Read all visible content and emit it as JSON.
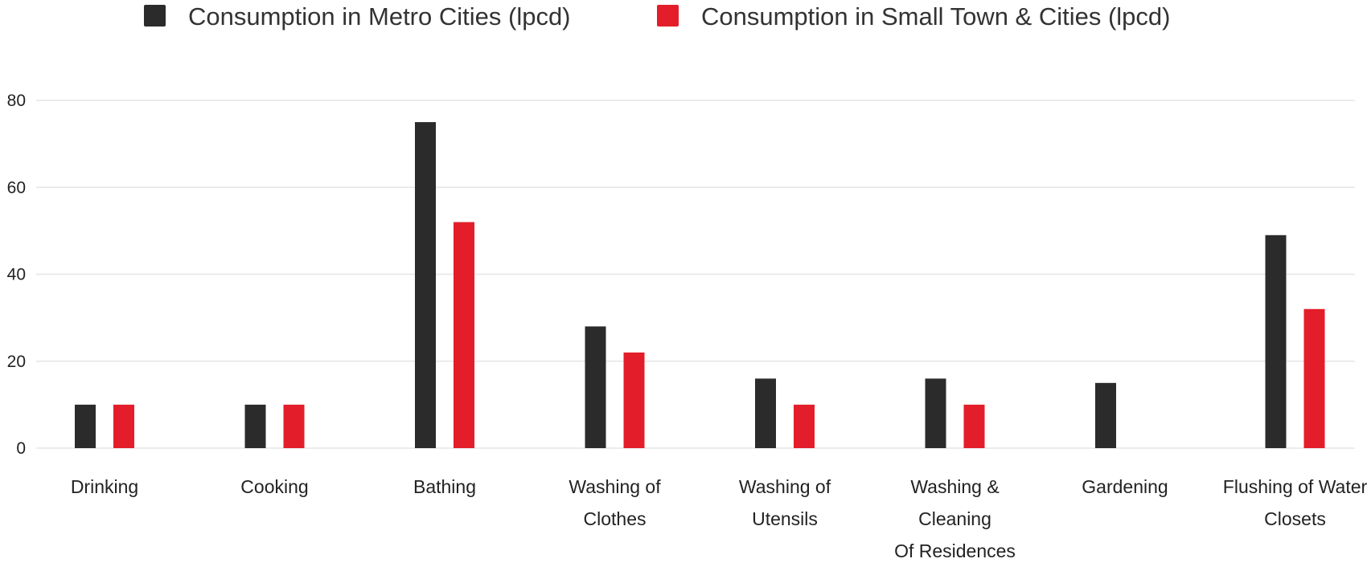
{
  "chart_data": {
    "type": "bar",
    "title": "",
    "xlabel": "",
    "ylabel": "",
    "ylim": [
      0,
      80
    ],
    "yticks": [
      0,
      20,
      40,
      60,
      80
    ],
    "grid": true,
    "legend_position": "top-center",
    "categories": [
      [
        "Drinking"
      ],
      [
        "Cooking"
      ],
      [
        "Bathing"
      ],
      [
        "Washing of",
        "Clothes"
      ],
      [
        "Washing of",
        "Utensils"
      ],
      [
        "Washing &",
        "Cleaning",
        "Of Residences"
      ],
      [
        "Gardening"
      ],
      [
        "Flushing of Water",
        "Closets"
      ]
    ],
    "series": [
      {
        "name": "Consumption in Metro Cities (lpcd)",
        "color": "#2b2b2b",
        "values": [
          10,
          10,
          75,
          28,
          16,
          16,
          15,
          49
        ]
      },
      {
        "name": "Consumption in Small Town & Cities (lpcd)",
        "color": "#e31e2a",
        "values": [
          10,
          10,
          52,
          22,
          10,
          10,
          0,
          32
        ]
      }
    ]
  }
}
